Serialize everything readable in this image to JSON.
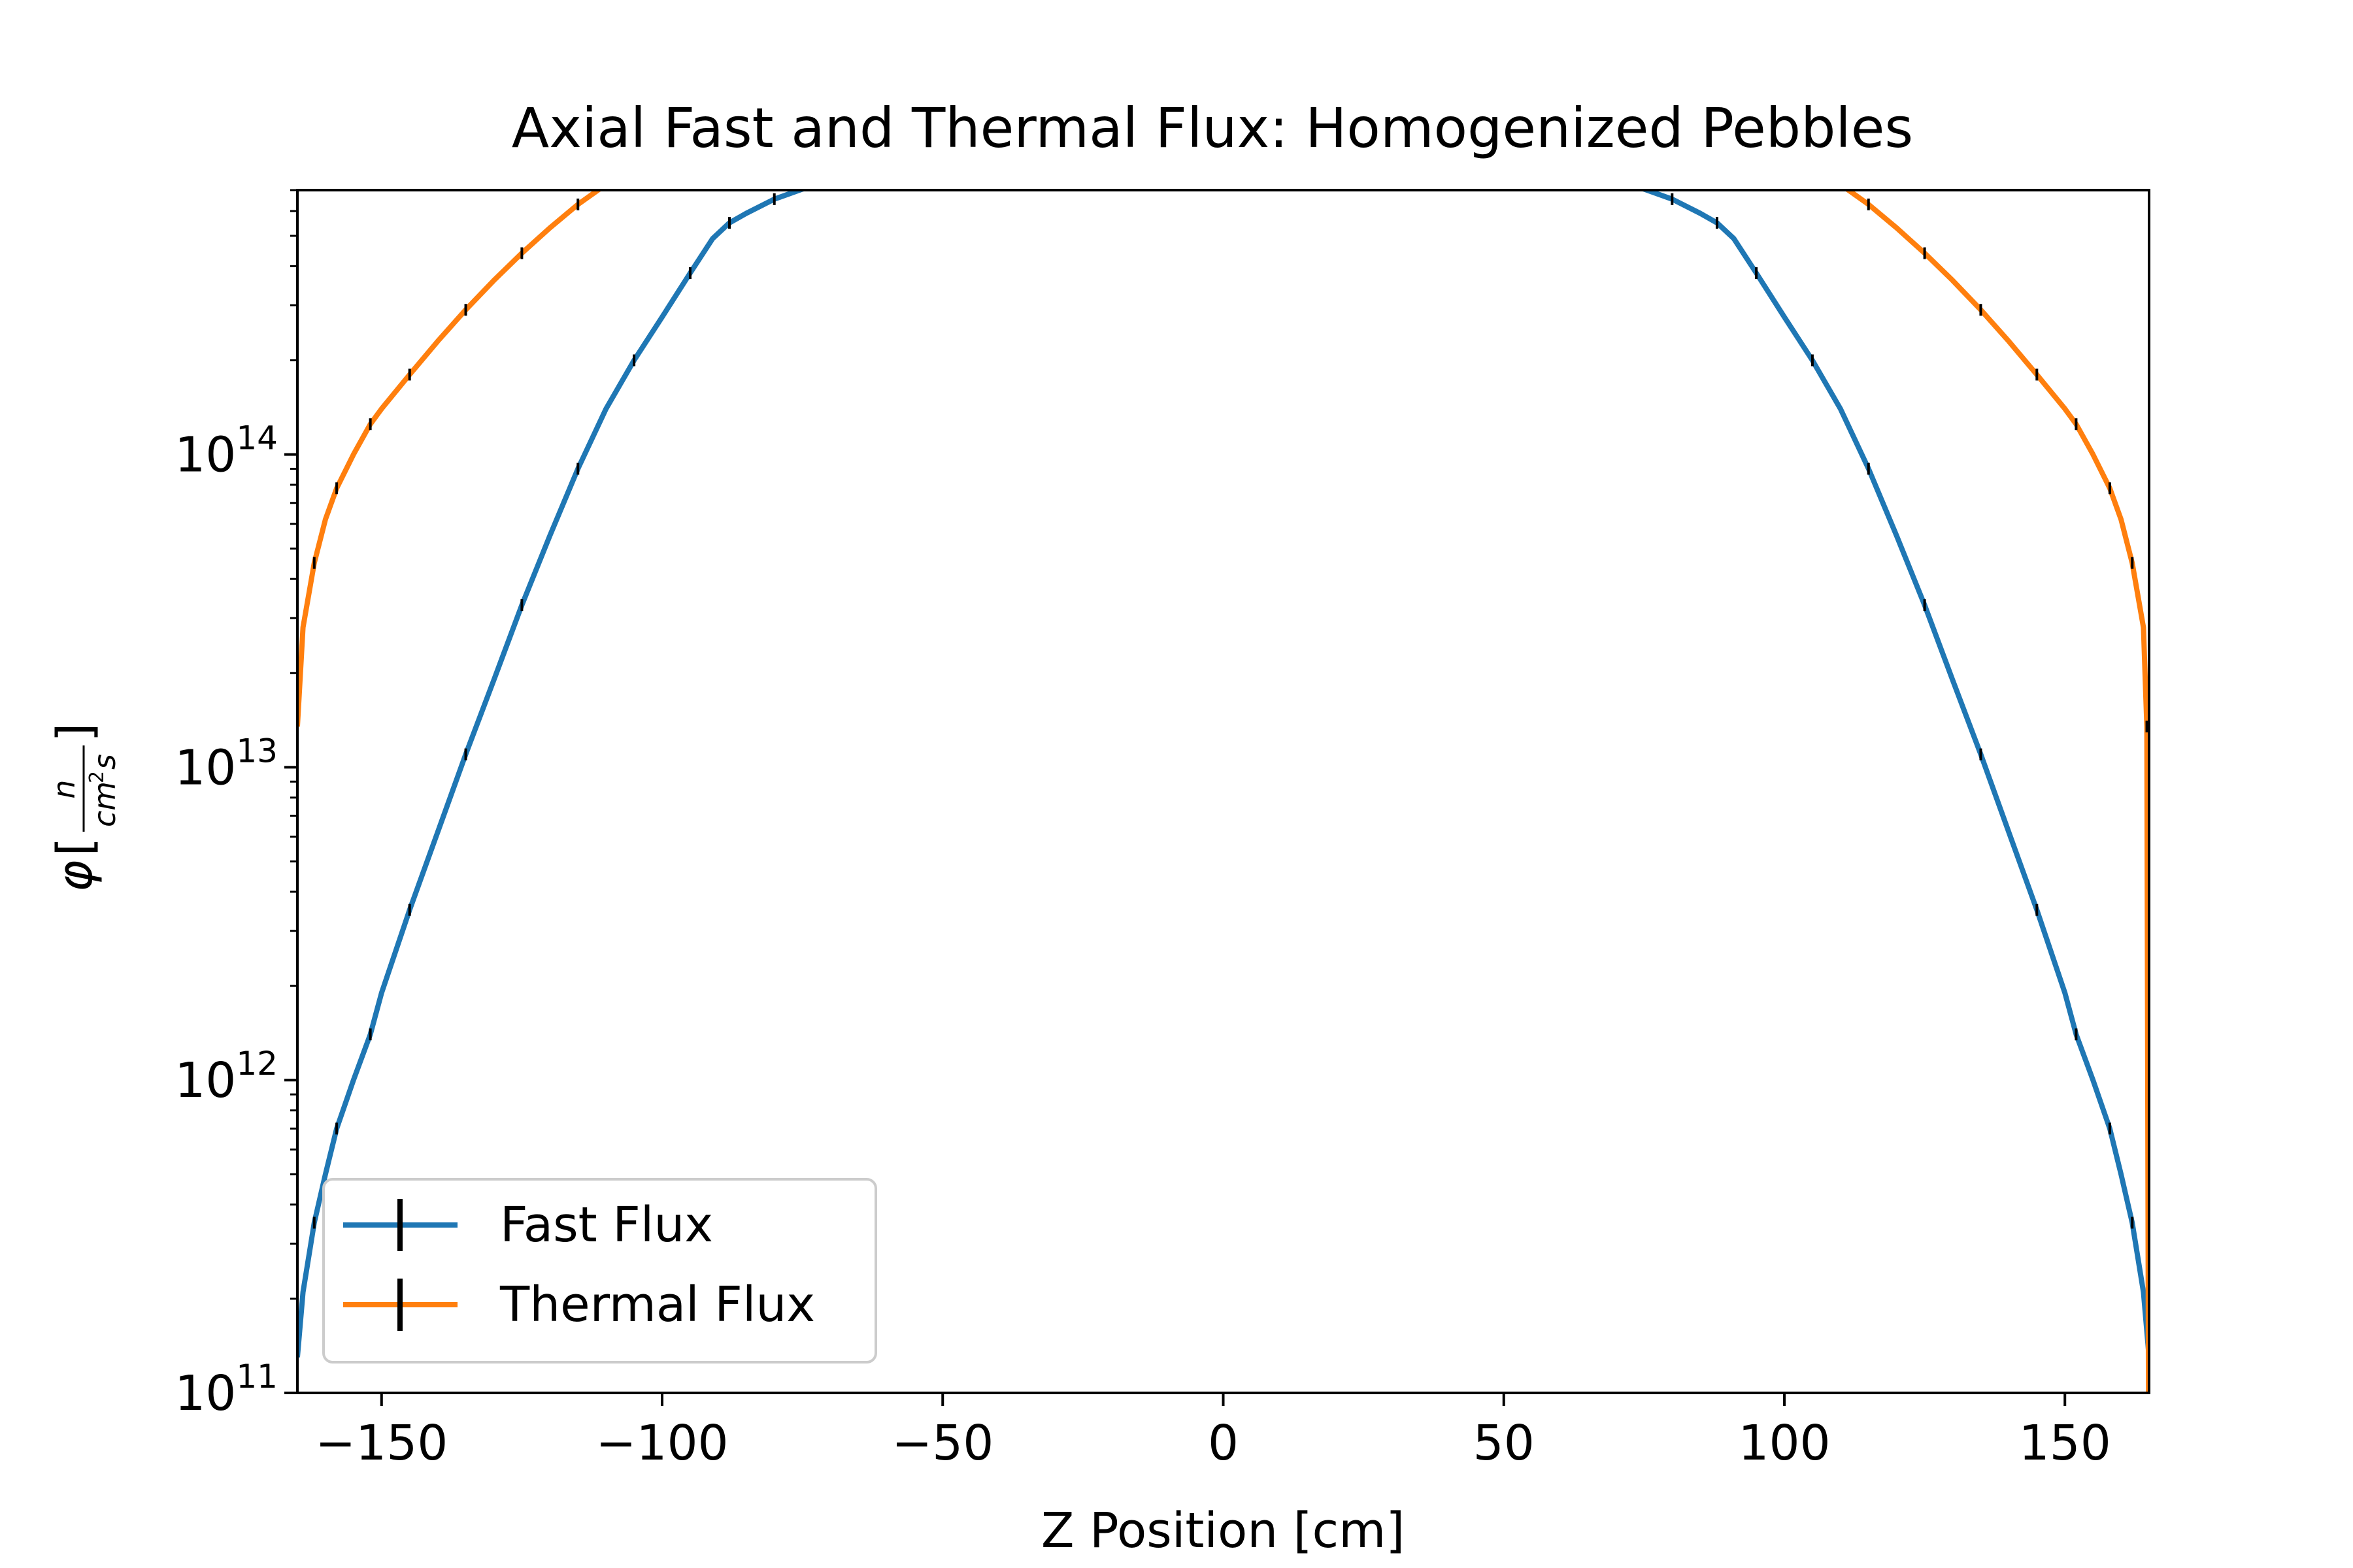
{
  "chart_data": {
    "type": "line",
    "title": "Axial Fast and Thermal Flux: Homogenized Pebbles",
    "xlabel": "Z Position [cm]",
    "ylabel": "φ[n/cm²s]",
    "ylabel_parts": {
      "phi": "φ",
      "open": "[",
      "num": "n",
      "den_cm": "cm",
      "den_sup": "2",
      "den_s": "s",
      "close": "]"
    },
    "xscale": "linear",
    "yscale": "log",
    "xlim": [
      -165,
      165
    ],
    "ylim": [
      100000000000.0,
      700000000000000.0
    ],
    "xticks": [
      -150,
      -100,
      -50,
      0,
      50,
      100,
      150
    ],
    "xtick_labels": [
      "−150",
      "−100",
      "−50",
      "0",
      "50",
      "100",
      "150"
    ],
    "yticks": [
      100000000000.0,
      1000000000000.0,
      10000000000000.0,
      100000000000000.0
    ],
    "ytick_labels": [
      {
        "base": "10",
        "exp": "11"
      },
      {
        "base": "10",
        "exp": "12"
      },
      {
        "base": "10",
        "exp": "13"
      },
      {
        "base": "10",
        "exp": "14"
      }
    ],
    "grid": false,
    "legend_position": "lower-left",
    "error_bars": true,
    "series": [
      {
        "name": "Fast Flux",
        "color": "#1f77b4",
        "x": [
          -165,
          -164,
          -162,
          -160,
          -158,
          -155,
          -152,
          -150,
          -145,
          -140,
          -135,
          -130,
          -125,
          -120,
          -115,
          -110,
          -105,
          -100,
          -95,
          -91,
          -88,
          -85,
          -80,
          -75,
          -70,
          -65,
          -60,
          -50,
          -40,
          -30,
          -20,
          -10,
          0,
          10,
          20,
          30,
          40,
          50,
          60,
          65,
          70,
          75,
          80,
          85,
          88,
          91,
          95,
          100,
          105,
          110,
          115,
          120,
          125,
          130,
          135,
          140,
          145,
          150,
          152,
          155,
          158,
          160,
          162,
          164,
          165
        ],
        "y": [
          130000000000.0,
          210000000000.0,
          350000000000.0,
          500000000000.0,
          700000000000.0,
          1000000000000.0,
          1400000000000.0,
          1900000000000.0,
          3500000000000.0,
          6200000000000.0,
          11000000000000.0,
          19000000000000.0,
          33000000000000.0,
          55000000000000.0,
          90000000000000.0,
          140000000000000.0,
          200000000000000.0,
          275000000000000.0,
          380000000000000.0,
          490000000000000.0,
          550000000000000.0,
          590000000000000.0,
          655000000000000.0,
          705000000000000.0,
          745000000000000.0,
          780000000000000.0,
          810000000000000.0,
          860000000000000.0,
          895000000000000.0,
          915000000000000.0,
          930000000000000.0,
          938000000000000.0,
          940000000000000.0,
          938000000000000.0,
          930000000000000.0,
          915000000000000.0,
          895000000000000.0,
          860000000000000.0,
          810000000000000.0,
          780000000000000.0,
          745000000000000.0,
          705000000000000.0,
          655000000000000.0,
          590000000000000.0,
          550000000000000.0,
          490000000000000.0,
          380000000000000.0,
          275000000000000.0,
          200000000000000.0,
          140000000000000.0,
          90000000000000.0,
          55000000000000.0,
          33000000000000.0,
          19000000000000.0,
          11000000000000.0,
          6200000000000.0,
          3500000000000.0,
          1900000000000.0,
          1400000000000.0,
          1000000000000.0,
          700000000000.0,
          500000000000.0,
          350000000000.0,
          210000000000.0,
          130000000000.0
        ]
      },
      {
        "name": "Thermal Flux",
        "color": "#ff7f0e",
        "x": [
          -165,
          -164,
          -162,
          -160,
          -158,
          -155,
          -152,
          -150,
          -145,
          -140,
          -135,
          -130,
          -125,
          -120,
          -115,
          -110,
          -105,
          -100,
          -97,
          -95,
          -93,
          -90,
          -85,
          -80,
          -75,
          -70,
          -60,
          -50,
          -40,
          -30,
          -20,
          -10,
          0,
          10,
          20,
          30,
          40,
          50,
          60,
          70,
          75,
          80,
          85,
          90,
          93,
          95,
          97,
          100,
          105,
          110,
          115,
          120,
          125,
          130,
          135,
          140,
          145,
          150,
          152,
          155,
          158,
          160,
          162,
          164,
          164.6,
          164.9
        ],
        "y": [
          13500000000000.0,
          28000000000000.0,
          45000000000000.0,
          62000000000000.0,
          78000000000000.0,
          100000000000000.0,
          125000000000000.0,
          140000000000000.0,
          180000000000000.0,
          230000000000000.0,
          290000000000000.0,
          360000000000000.0,
          440000000000000.0,
          530000000000000.0,
          630000000000000.0,
          730000000000000.0,
          800000000000000.0,
          830000000000000.0,
          830000000000000.0,
          815000000000000.0,
          785000000000000.0,
          760000000000000.0,
          750000000000000.0,
          755000000000000.0,
          765000000000000.0,
          780000000000000.0,
          810000000000000.0,
          840000000000000.0,
          860000000000000.0,
          875000000000000.0,
          885000000000000.0,
          892000000000000.0,
          895000000000000.0,
          892000000000000.0,
          885000000000000.0,
          875000000000000.0,
          860000000000000.0,
          840000000000000.0,
          810000000000000.0,
          780000000000000.0,
          765000000000000.0,
          755000000000000.0,
          750000000000000.0,
          760000000000000.0,
          785000000000000.0,
          815000000000000.0,
          830000000000000.0,
          830000000000000.0,
          800000000000000.0,
          730000000000000.0,
          630000000000000.0,
          530000000000000.0,
          440000000000000.0,
          360000000000000.0,
          290000000000000.0,
          230000000000000.0,
          180000000000000.0,
          140000000000000.0,
          125000000000000.0,
          100000000000000.0,
          78000000000000.0,
          62000000000000.0,
          45000000000000.0,
          28000000000000.0,
          13500000000000.0,
          100000000000.0
        ]
      }
    ]
  }
}
